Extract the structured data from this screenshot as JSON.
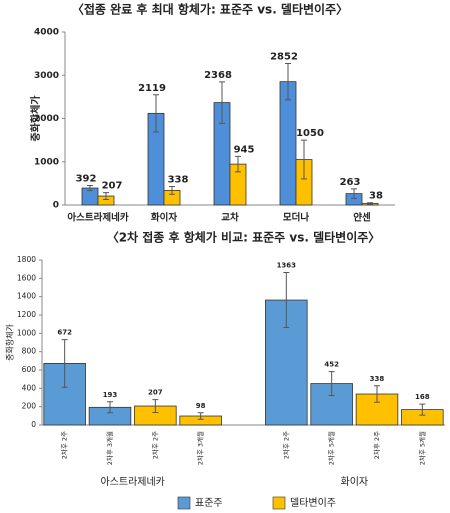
{
  "chart_data": [
    {
      "type": "bar",
      "title": "〈접종 완료 후 최대 항체가: 표준주 vs. 델타변이주〉",
      "y_label": "중화항체가",
      "categories": [
        "아스트라제네카",
        "화이자",
        "교차",
        "모더나",
        "얀센"
      ],
      "series": [
        {
          "name": "표준주",
          "color": "#4f8fd9",
          "values": [
            392,
            2119,
            2368,
            2852,
            263
          ],
          "errors": [
            60,
            430,
            480,
            420,
            110
          ]
        },
        {
          "name": "델타변이주",
          "color": "#ffc000",
          "values": [
            207,
            338,
            945,
            1050,
            38
          ],
          "errors": [
            80,
            90,
            180,
            450,
            15
          ]
        }
      ],
      "ylim": [
        0,
        4000
      ],
      "yticks": [
        0,
        1000,
        2000,
        3000,
        4000
      ],
      "grid": false
    },
    {
      "type": "bar",
      "title": "〈2차 접종 후 항체가 비교: 표준주 vs. 델타변이주〉",
      "y_label": "중화항체가",
      "categories": [
        "2차후 2주",
        "2차후 3개월",
        "2차후 2주",
        "2차후 3개월",
        "2차후 2주",
        "2차후 5개월",
        "2차후 2주",
        "2차후 5개월"
      ],
      "groups": [
        "아스트라제네카",
        "화이자"
      ],
      "series": [
        {
          "name": "표준주",
          "color": "#5b9bd5",
          "values": [
            672,
            193,
            null,
            null,
            1363,
            452,
            null,
            null
          ],
          "errors": [
            260,
            60,
            null,
            null,
            300,
            130,
            null,
            null
          ]
        },
        {
          "name": "델타변이주",
          "color": "#ffc000",
          "values": [
            null,
            null,
            207,
            98,
            null,
            null,
            338,
            168
          ],
          "errors": [
            null,
            null,
            70,
            35,
            null,
            null,
            90,
            60
          ]
        }
      ],
      "ylim": [
        0,
        1800
      ],
      "yticks": [
        0,
        200,
        400,
        600,
        800,
        1000,
        1200,
        1400,
        1600,
        1800
      ],
      "grid": false,
      "legend": "bottom"
    }
  ]
}
